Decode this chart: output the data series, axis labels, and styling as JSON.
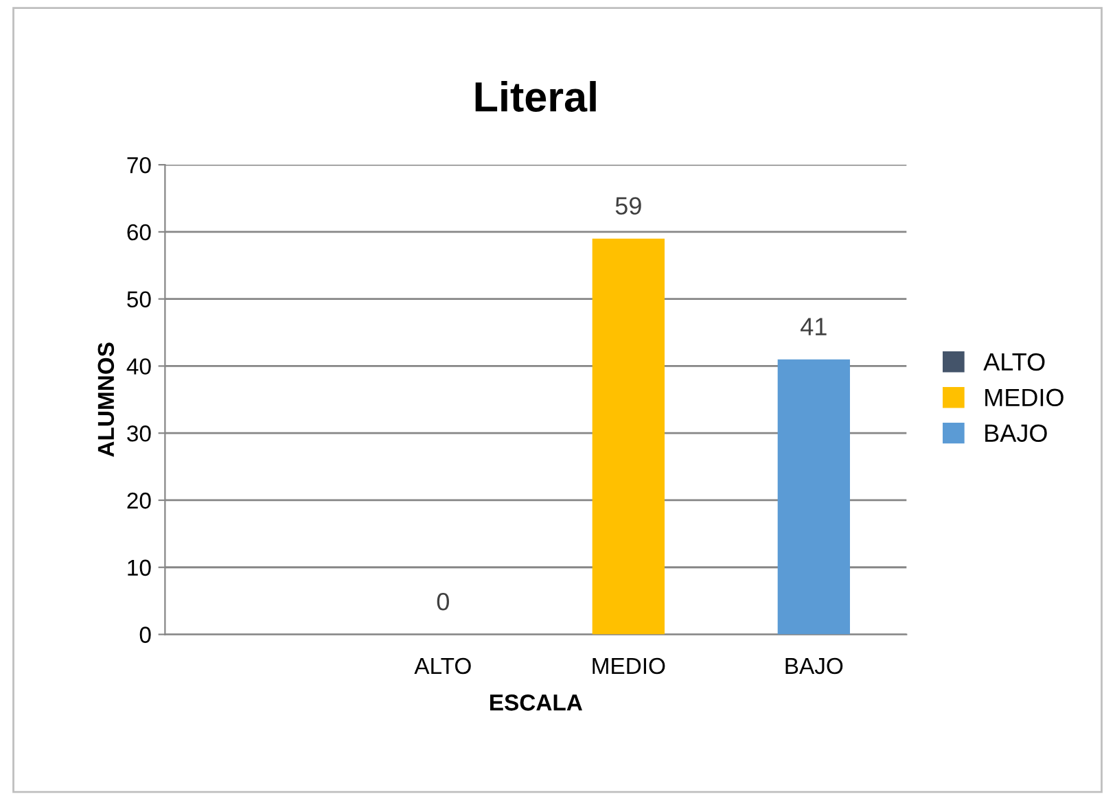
{
  "chart_data": {
    "type": "bar",
    "title": "Literal",
    "xlabel": "ESCALA",
    "ylabel": "ALUMNOS",
    "categories": [
      null,
      "ALTO",
      "MEDIO",
      "BAJO"
    ],
    "series": [
      {
        "name": "ALTO",
        "color": "#44546a",
        "values": [
          null,
          0,
          null,
          null
        ]
      },
      {
        "name": "MEDIO",
        "color": "#ffc000",
        "values": [
          null,
          null,
          59,
          null
        ]
      },
      {
        "name": "BAJO",
        "color": "#5b9bd5",
        "values": [
          null,
          null,
          null,
          41
        ]
      }
    ],
    "ylim": [
      0,
      70
    ],
    "yticks": [
      0,
      10,
      20,
      30,
      40,
      50,
      60,
      70
    ],
    "grid": "y",
    "legend": "right",
    "data_labels": true
  }
}
